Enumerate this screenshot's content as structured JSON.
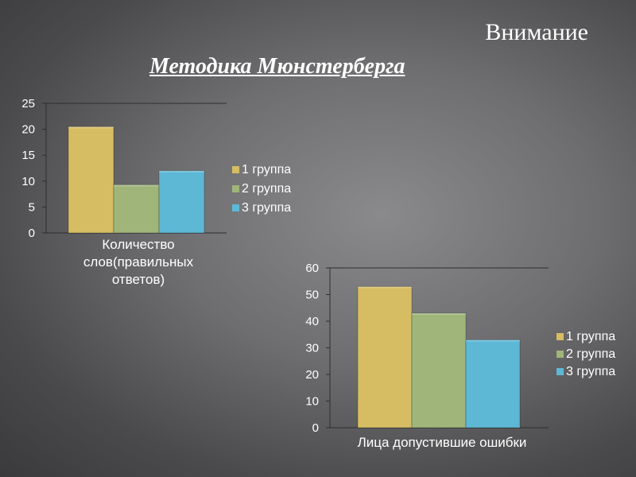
{
  "slide": {
    "title": "Внимание",
    "subtitle": "Методика Мюнстерберга"
  },
  "chart_data": [
    {
      "type": "bar",
      "categories": [
        "Количество слов(правильных ответов)"
      ],
      "category_label_lines": [
        "Количество",
        "слов(правильных",
        "ответов)"
      ],
      "series": [
        {
          "name": "1 группа",
          "values": [
            20.5
          ],
          "color": "#d6bd63"
        },
        {
          "name": "2 группа",
          "values": [
            9.3
          ],
          "color": "#9fb57a"
        },
        {
          "name": "3 группа",
          "values": [
            12
          ],
          "color": "#5db8d6"
        }
      ],
      "ylim": [
        0,
        25
      ],
      "yticks": [
        0,
        5,
        10,
        15,
        20,
        25
      ],
      "grid": false,
      "legend": "right"
    },
    {
      "type": "bar",
      "categories": [
        "Лица допустившие ошибки"
      ],
      "category_label_lines": [
        "Лица допустившие ошибки"
      ],
      "series": [
        {
          "name": "1 группа",
          "values": [
            53
          ],
          "color": "#d6bd63"
        },
        {
          "name": "2 группа",
          "values": [
            43
          ],
          "color": "#9fb57a"
        },
        {
          "name": "3 группа",
          "values": [
            33
          ],
          "color": "#5db8d6"
        }
      ],
      "ylim": [
        0,
        60
      ],
      "yticks": [
        0,
        10,
        20,
        30,
        40,
        50,
        60
      ],
      "grid": false,
      "legend": "right"
    }
  ]
}
